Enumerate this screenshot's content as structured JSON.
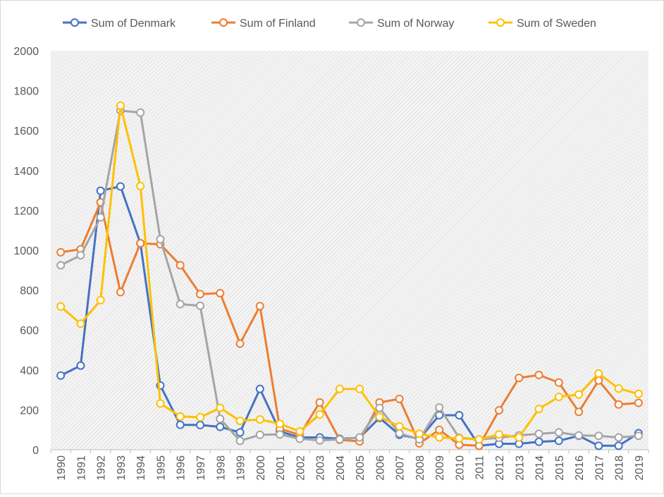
{
  "chart_data": {
    "type": "line",
    "title": "",
    "xlabel": "",
    "ylabel": "",
    "ylim": [
      0,
      2000
    ],
    "yticks": [
      0,
      200,
      400,
      600,
      800,
      1000,
      1200,
      1400,
      1600,
      1800,
      2000
    ],
    "grid": false,
    "legend_position": "top",
    "plot_background": "light gray hatched",
    "categories": [
      "1990",
      "1991",
      "1992",
      "1993",
      "1994",
      "1995",
      "1996",
      "1997",
      "1998",
      "1999",
      "2000",
      "2001",
      "2002",
      "2003",
      "2004",
      "2005",
      "2006",
      "2007",
      "2008",
      "2009",
      "2010",
      "2011",
      "2012",
      "2013",
      "2014",
      "2015",
      "2016",
      "2017",
      "2018",
      "2019"
    ],
    "series": [
      {
        "name": "Sum of Denmark",
        "color": "#4472c4",
        "values": [
          372,
          422,
          1298,
          1320,
          1035,
          322,
          125,
          124,
          115,
          87,
          305,
          92,
          62,
          62,
          55,
          60,
          160,
          75,
          55,
          173,
          173,
          20,
          30,
          30,
          40,
          45,
          70,
          20,
          20,
          83
        ]
      },
      {
        "name": "Sum of Finland",
        "color": "#ed7d31",
        "values": [
          990,
          1005,
          1240,
          790,
          1035,
          1030,
          925,
          780,
          785,
          532,
          720,
          105,
          75,
          237,
          50,
          42,
          237,
          255,
          32,
          100,
          25,
          20,
          198,
          360,
          375,
          337,
          190,
          347,
          227,
          235
        ]
      },
      {
        "name": "Sum of Norway",
        "color": "#a5a5a5",
        "values": [
          925,
          975,
          1165,
          1700,
          1690,
          1055,
          730,
          722,
          155,
          45,
          75,
          77,
          55,
          47,
          52,
          62,
          210,
          82,
          52,
          212,
          60,
          52,
          60,
          72,
          80,
          87,
          72,
          70,
          62,
          70
        ]
      },
      {
        "name": "Sum of Sweden",
        "color": "#ffc000",
        "values": [
          718,
          632,
          750,
          1725,
          1322,
          232,
          167,
          163,
          210,
          145,
          152,
          130,
          92,
          177,
          305,
          305,
          165,
          117,
          80,
          62,
          57,
          52,
          77,
          62,
          205,
          265,
          277,
          382,
          307,
          280
        ]
      }
    ]
  }
}
